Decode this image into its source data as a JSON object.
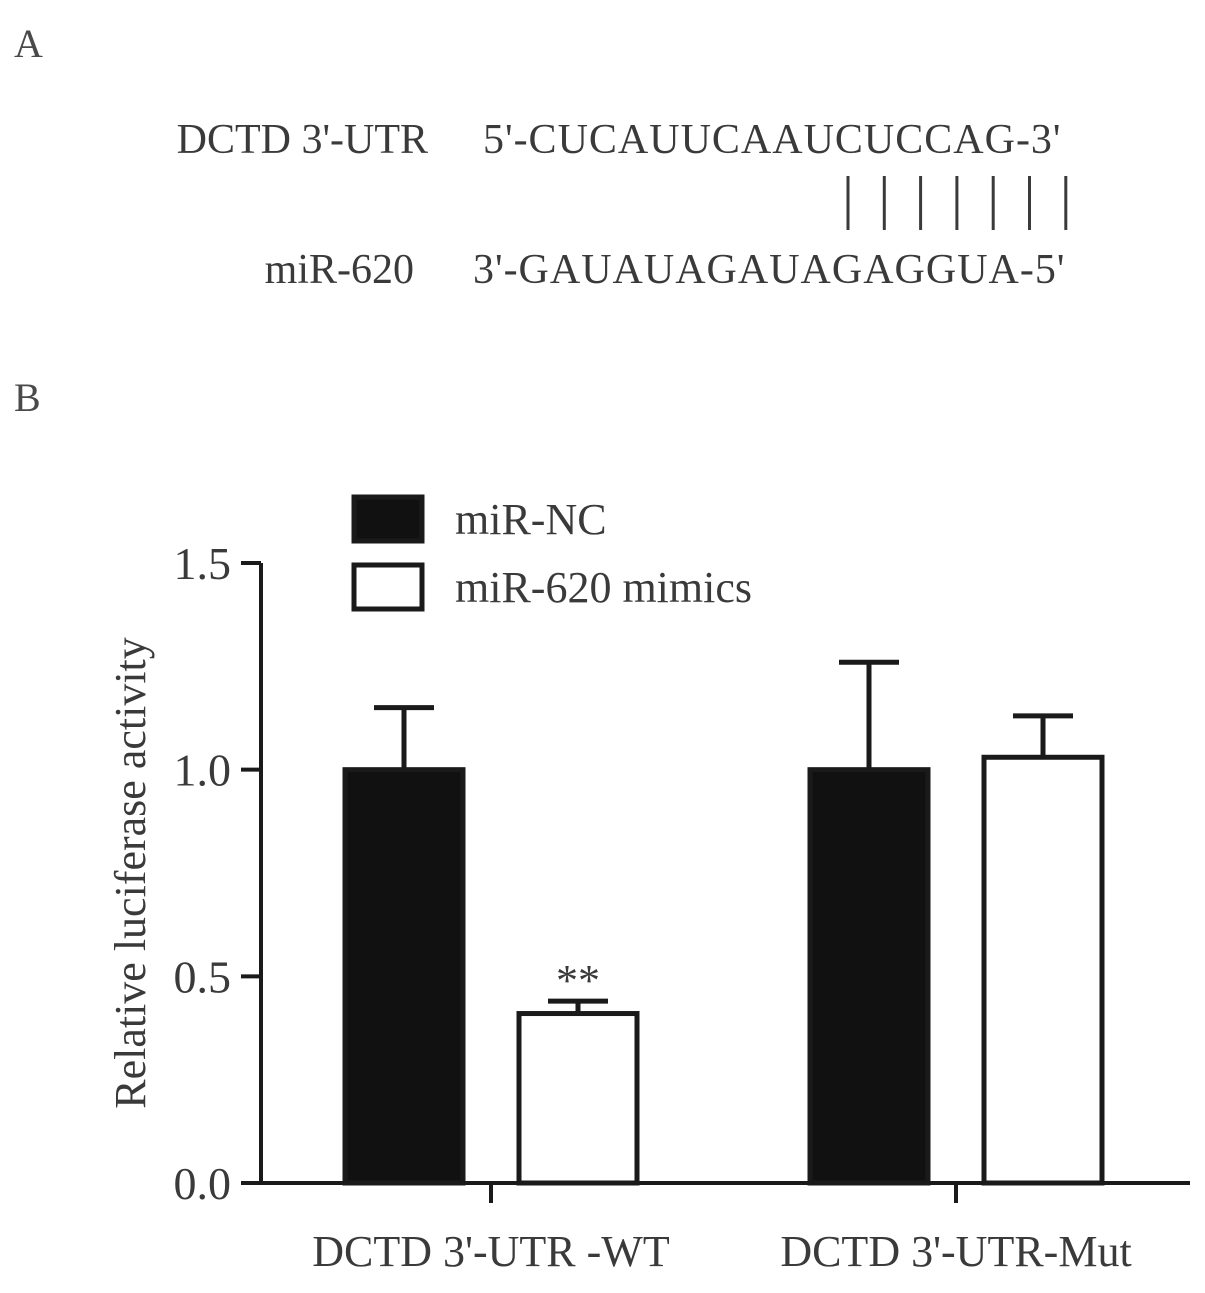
{
  "panel_a": {
    "label": "A",
    "gene_name": "DCTD 3'-UTR",
    "gene_seq": "5'-CUCAUUCAAUCUCCAG-3'",
    "mirna_name": "miR-620",
    "mirna_seq": "3'-GAUAUAGAUAGAGGUA-5'",
    "pairing_count": 7
  },
  "panel_b": {
    "label": "B"
  },
  "chart_data": {
    "type": "bar",
    "title": "",
    "xlabel": "",
    "ylabel": "Relative luciferase activity",
    "ylim": [
      0,
      1.5
    ],
    "yticks": [
      "0.0",
      "0.5",
      "1.0",
      "1.5"
    ],
    "categories": [
      "DCTD 3'-UTR -WT",
      "DCTD 3'-UTR-Mut"
    ],
    "series": [
      {
        "name": "miR-NC",
        "values": [
          1.0,
          1.0
        ],
        "errors": [
          0.15,
          0.26
        ],
        "color": "#111111"
      },
      {
        "name": "miR-620 mimics",
        "values": [
          0.41,
          1.03
        ],
        "errors": [
          0.03,
          0.1
        ],
        "color": "#ffffff"
      }
    ],
    "annotations": [
      {
        "text": "**",
        "category": 0,
        "series": 1
      }
    ],
    "legend": "top-left"
  }
}
